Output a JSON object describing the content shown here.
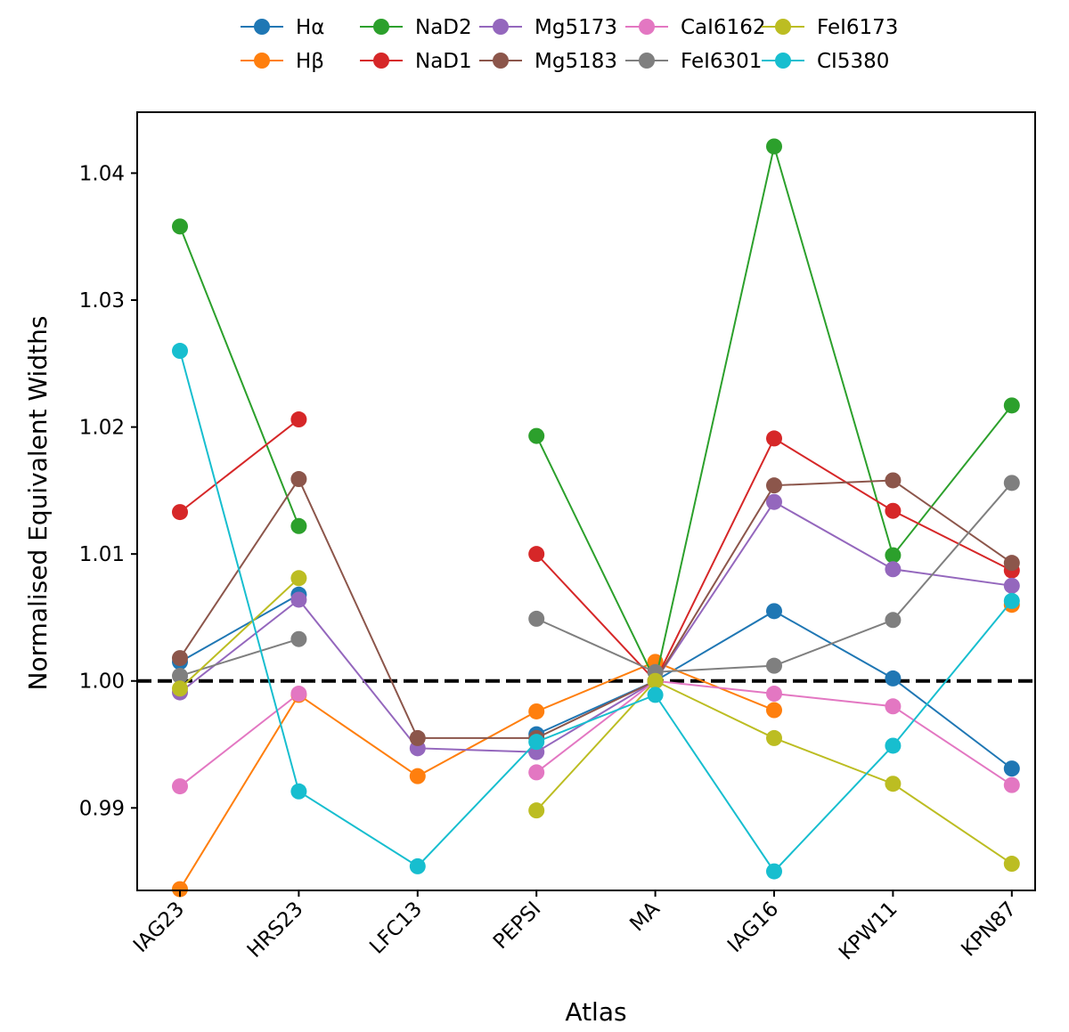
{
  "chart_data": {
    "type": "line",
    "title": "",
    "xlabel": "Atlas",
    "ylabel": "Normalised Equivalent Widths",
    "categories": [
      "IAG23",
      "HRS23",
      "LFC13",
      "PEPSI",
      "MA",
      "IAG16",
      "KPW11",
      "KPN87"
    ],
    "ylim": [
      0.9835,
      1.0448
    ],
    "yticks": [
      0.99,
      1.0,
      1.01,
      1.02,
      1.03,
      1.04
    ],
    "ytick_labels": [
      "0.99",
      "1.00",
      "1.01",
      "1.02",
      "1.03",
      "1.04"
    ],
    "reference_line": {
      "y": 1.0,
      "style": "dashed",
      "color": "#000000"
    },
    "legend": {
      "placement": "top-center, outside plot",
      "columns": 6
    },
    "series": [
      {
        "name": "Hα",
        "color": "#1f77b4",
        "values": [
          1.0015,
          1.0068,
          null,
          0.9958,
          1.0,
          1.0055,
          1.0002,
          0.9931
        ]
      },
      {
        "name": "Hβ",
        "color": "#ff7f0e",
        "values": [
          0.9836,
          0.9989,
          0.9925,
          0.9976,
          1.0015,
          0.9977,
          null,
          1.006
        ]
      },
      {
        "name": "NaD2",
        "color": "#2ca02c",
        "values": [
          1.0358,
          1.0122,
          null,
          1.0193,
          1.0,
          1.0421,
          1.0099,
          1.0217
        ]
      },
      {
        "name": "NaD1",
        "color": "#d62728",
        "values": [
          1.0133,
          1.0206,
          null,
          1.01,
          1.0,
          1.0191,
          1.0134,
          1.0087
        ]
      },
      {
        "name": "Mg5173",
        "color": "#9467bd",
        "values": [
          0.9991,
          1.0064,
          0.9947,
          0.9944,
          1.0,
          1.0141,
          1.0088,
          1.0075
        ]
      },
      {
        "name": "Mg5183",
        "color": "#8c564b",
        "values": [
          1.0018,
          1.0159,
          0.9955,
          0.9955,
          1.0,
          1.0154,
          1.0158,
          1.0093
        ]
      },
      {
        "name": "CaI6162",
        "color": "#e377c2",
        "values": [
          0.9917,
          0.999,
          null,
          0.9928,
          1.0,
          0.999,
          0.998,
          0.9918
        ]
      },
      {
        "name": "FeI6301",
        "color": "#7f7f7f",
        "values": [
          1.0004,
          1.0033,
          null,
          1.0049,
          1.0007,
          1.0012,
          1.0048,
          1.0156
        ]
      },
      {
        "name": "FeI6173",
        "color": "#bcbd22",
        "values": [
          0.9994,
          1.0081,
          null,
          0.9898,
          1.0,
          0.9955,
          0.9919,
          0.9856
        ]
      },
      {
        "name": "CI5380",
        "color": "#17becf",
        "values": [
          1.026,
          0.9913,
          0.9854,
          0.9952,
          0.9989,
          0.985,
          0.9949,
          1.0063
        ]
      }
    ]
  }
}
